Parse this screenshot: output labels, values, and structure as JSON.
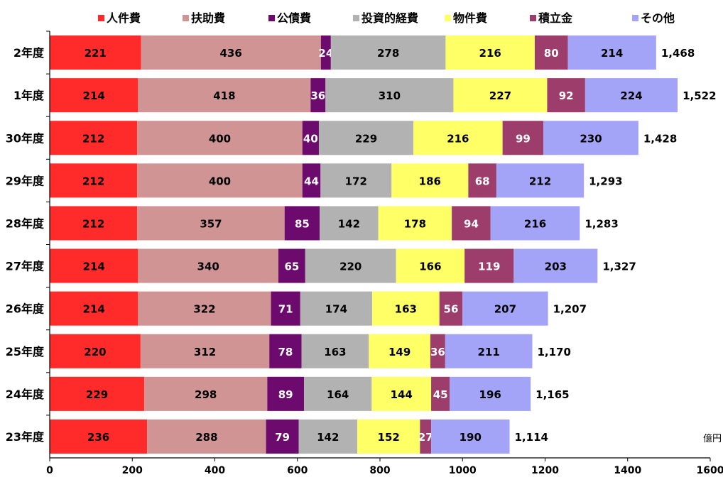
{
  "chart_data": {
    "type": "bar",
    "orientation": "horizontal",
    "stacked": true,
    "categories": [
      "2年度",
      "1年度",
      "30年度",
      "29年度",
      "28年度",
      "27年度",
      "26年度",
      "25年度",
      "24年度",
      "23年度"
    ],
    "series": [
      {
        "name": "人件費",
        "color": "#ff2b2b",
        "label_color": "#000000",
        "values": [
          221,
          214,
          212,
          212,
          212,
          214,
          214,
          220,
          229,
          236
        ]
      },
      {
        "name": "扶助費",
        "color": "#d09494",
        "label_color": "#000000",
        "values": [
          436,
          418,
          400,
          400,
          357,
          340,
          322,
          312,
          298,
          288
        ]
      },
      {
        "name": "公債費",
        "color": "#6c0a6e",
        "label_color": "#ffffff",
        "values": [
          24,
          36,
          40,
          44,
          85,
          65,
          71,
          78,
          89,
          79
        ]
      },
      {
        "name": "投資的経費",
        "color": "#b2b2b2",
        "label_color": "#000000",
        "values": [
          278,
          310,
          229,
          172,
          142,
          220,
          174,
          163,
          164,
          142
        ]
      },
      {
        "name": "物件費",
        "color": "#ffff66",
        "label_color": "#000000",
        "values": [
          216,
          227,
          216,
          186,
          178,
          166,
          163,
          149,
          144,
          152
        ]
      },
      {
        "name": "積立金",
        "color": "#9c3d6c",
        "label_color": "#ffffff",
        "values": [
          80,
          92,
          99,
          68,
          94,
          119,
          56,
          36,
          45,
          27
        ]
      },
      {
        "name": "その他",
        "color": "#a3a3f7",
        "label_color": "#000000",
        "values": [
          214,
          224,
          230,
          212,
          216,
          203,
          207,
          211,
          196,
          190
        ]
      }
    ],
    "totals": [
      "1,468",
      "1,522",
      "1,428",
      "1,293",
      "1,283",
      "1,327",
      "1,207",
      "1,170",
      "1,165",
      "1,114"
    ],
    "x_ticks": [
      0,
      200,
      400,
      600,
      800,
      1000,
      1200,
      1400,
      1600
    ],
    "xlim": [
      0,
      1600
    ],
    "unit": "億円",
    "legend_position": "top",
    "grid": false
  }
}
